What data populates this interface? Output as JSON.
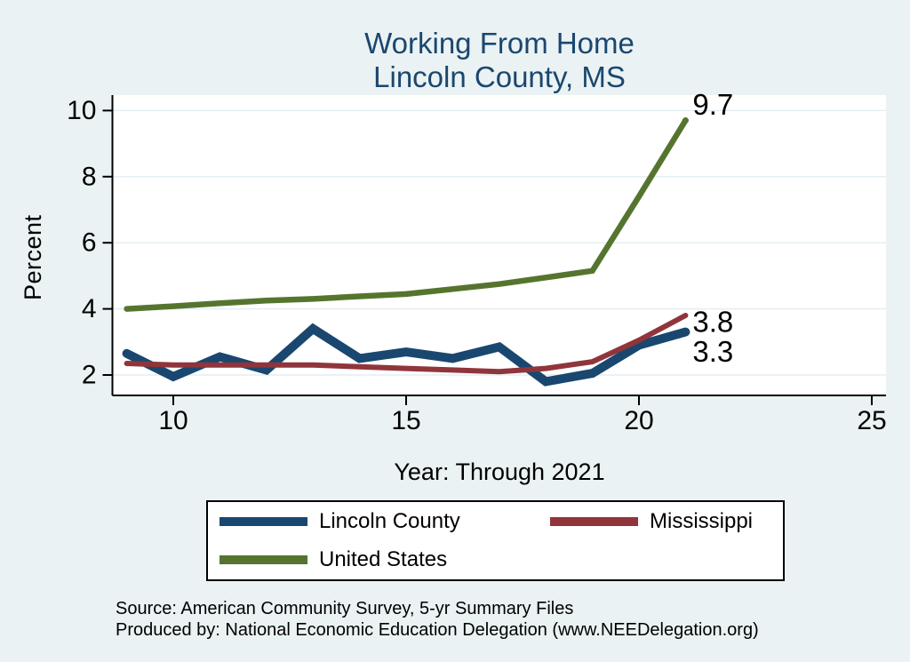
{
  "page": {
    "background": "#eaf2f3"
  },
  "title": {
    "line1": "Working From Home",
    "line2": "Lincoln County, MS",
    "color": "#1a476f"
  },
  "y_axis": {
    "title": "Percent",
    "ticks": [
      2,
      4,
      6,
      8,
      10
    ]
  },
  "x_axis": {
    "title": "Year: Through 2021",
    "ticks": [
      10,
      15,
      20,
      25
    ]
  },
  "chart_data": {
    "type": "line",
    "title": "Working From Home — Lincoln County, MS",
    "xlabel": "Year: Through 2021",
    "ylabel": "Percent",
    "xlim": [
      8.7,
      25.3
    ],
    "ylim": [
      1.4,
      10.5
    ],
    "grid": "horizontal",
    "legend_position": "bottom",
    "x": [
      9,
      10,
      11,
      12,
      13,
      14,
      15,
      16,
      17,
      18,
      19,
      20,
      21
    ],
    "series": [
      {
        "name": "Lincoln County",
        "color": "#1a476f",
        "stroke_width": 10,
        "values": [
          2.65,
          1.95,
          2.55,
          2.15,
          3.4,
          2.5,
          2.7,
          2.5,
          2.85,
          1.8,
          2.05,
          2.9,
          3.3
        ],
        "end_label": "3.3",
        "end_label_dy": 22,
        "end_marker": false
      },
      {
        "name": "Mississippi",
        "color": "#90353b",
        "stroke_width": 6,
        "values": [
          2.35,
          2.3,
          2.3,
          2.3,
          2.3,
          2.25,
          2.2,
          2.15,
          2.1,
          2.2,
          2.4,
          3.05,
          3.8
        ],
        "end_label": "3.8",
        "end_label_dy": 7,
        "end_marker": false
      },
      {
        "name": "United States",
        "color": "#55752f",
        "stroke_width": 6.5,
        "values": [
          4.0,
          4.08,
          4.17,
          4.25,
          4.3,
          4.38,
          4.45,
          4.6,
          4.75,
          4.95,
          5.15,
          7.4,
          9.7
        ],
        "end_label": "9.7",
        "end_label_dy": -18,
        "end_marker": true
      }
    ]
  },
  "legend": {
    "items": [
      {
        "label": "Lincoln County",
        "color": "#1a476f"
      },
      {
        "label": "Mississippi",
        "color": "#90353b"
      },
      {
        "label": "United States",
        "color": "#55752f"
      }
    ]
  },
  "footer": {
    "line1": "Source: American Community Survey, 5-yr Summary Files",
    "line2": "Produced by: National Economic Education Delegation (www.NEEDelegation.org)"
  }
}
